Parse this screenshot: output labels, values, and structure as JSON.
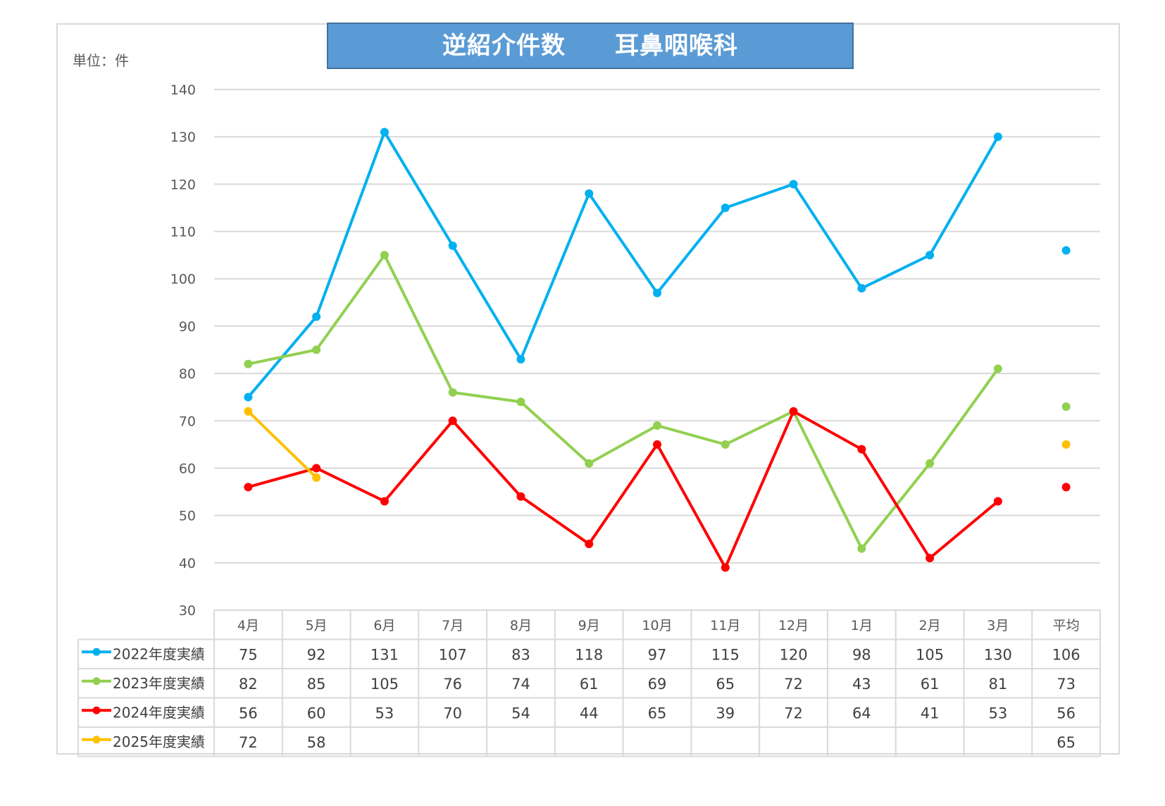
{
  "title": "逆紹介件数　　耳鼻咽喉科",
  "unit_label": "単位：件",
  "colors": {
    "title_bg": "#5b9bd5",
    "gridline": "#d9d9d9",
    "table_border": "#d9d9d9"
  },
  "chart_data": {
    "type": "line",
    "title": "逆紹介件数　　耳鼻咽喉科",
    "ylabel": "単位：件",
    "ylim": [
      30,
      140
    ],
    "ytick_step": 10,
    "grid": true,
    "legend_placement": "data-table-left",
    "categories": [
      "4月",
      "5月",
      "6月",
      "7月",
      "8月",
      "9月",
      "10月",
      "11月",
      "12月",
      "1月",
      "2月",
      "3月"
    ],
    "average_label": "平均",
    "series": [
      {
        "name": "2022年度実績",
        "color": "#00b0f0",
        "values": [
          75,
          92,
          131,
          107,
          83,
          118,
          97,
          115,
          120,
          98,
          105,
          130
        ],
        "average": 106
      },
      {
        "name": "2023年度実績",
        "color": "#92d050",
        "values": [
          82,
          85,
          105,
          76,
          74,
          61,
          69,
          65,
          72,
          43,
          61,
          81
        ],
        "average": 73
      },
      {
        "name": "2024年度実績",
        "color": "#ff0000",
        "values": [
          56,
          60,
          53,
          70,
          54,
          44,
          65,
          39,
          72,
          64,
          41,
          53
        ],
        "average": 56
      },
      {
        "name": "2025年度実績",
        "color": "#ffc000",
        "values": [
          72,
          58,
          null,
          null,
          null,
          null,
          null,
          null,
          null,
          null,
          null,
          null
        ],
        "average": 65
      }
    ]
  }
}
